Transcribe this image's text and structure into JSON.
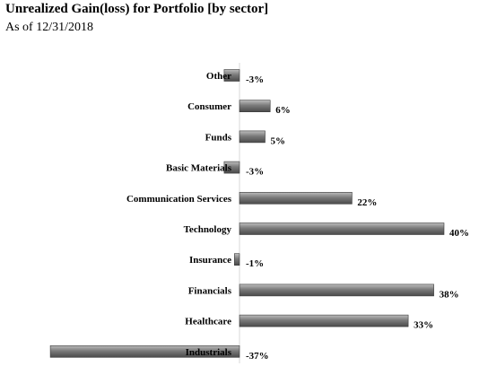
{
  "header": {
    "title": "Unrealized Gain(loss) for Portfolio [by sector]",
    "subtitle": "As of 12/31/2018"
  },
  "chart_data": {
    "type": "bar",
    "orientation": "horizontal",
    "title": "Unrealized Gain(loss) for Portfolio [by sector]",
    "subtitle": "As of 12/31/2018",
    "categories": [
      "Other",
      "Consumer",
      "Funds",
      "Basic Materials",
      "Communication Services",
      "Technology",
      "Insurance",
      "Financials",
      "Healthcare",
      "Industrials"
    ],
    "values": [
      -3,
      6,
      5,
      -3,
      22,
      40,
      -1,
      38,
      33,
      -37
    ],
    "labels": [
      "-3%",
      "6%",
      "5%",
      "-3%",
      "22%",
      "40%",
      "-1%",
      "38%",
      "33%",
      "-37%"
    ],
    "unit": "%",
    "xlim": [
      -37,
      40
    ],
    "grid": false,
    "bar_color": "#7f7f7f"
  }
}
